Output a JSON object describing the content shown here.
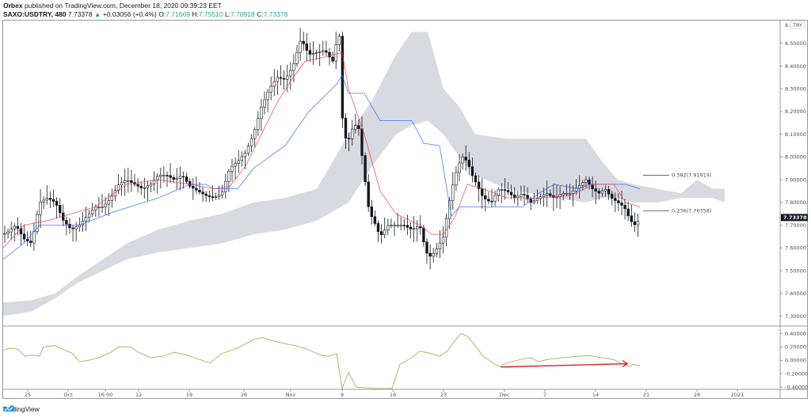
{
  "header": {
    "publisher": "Orbex",
    "published_text": "published on TradingView.com, December 18, 2020 09:39:23 EET",
    "symbol": "SAXO:USDTRY, 480",
    "last": "7.73378",
    "change_arrow": "▲",
    "change": "+0.03056 (+0.4%)",
    "o_label": "O:",
    "o": "7.71669",
    "h_label": "H:",
    "h": "7.75510",
    "l_label": "L:",
    "l": "7.70918",
    "c_label": "C:",
    "c": "7.73378"
  },
  "branding": {
    "name": "TradingView"
  },
  "price_axis": {
    "currency_badge": "TRY",
    "top_label_partial": "8.",
    "last_price_label": "7.73378",
    "ticks": [
      "8.50000",
      "8.40000",
      "8.30000",
      "8.20000",
      "8.10000",
      "8.00000",
      "7.90000",
      "7.80000",
      "7.70000",
      "7.60000",
      "7.50000",
      "7.40000",
      "7.30000"
    ]
  },
  "oscillator_axis": {
    "ticks": [
      "0.40000",
      "0.20000",
      "0.00000",
      "-0.20000",
      "-0.40000"
    ]
  },
  "time_axis": {
    "ticks": [
      "25",
      "Oct",
      "16:00",
      "12",
      "19",
      "26",
      "Nov",
      "9",
      "16",
      "23",
      "Dec",
      "7",
      "14",
      "21",
      "28",
      "2021"
    ]
  },
  "fib_levels": [
    {
      "label": "0.382(7.91919)",
      "value": 7.91919
    },
    {
      "label": "0.236(7.76358)",
      "value": 7.76358
    }
  ],
  "colors": {
    "tenkan": "#f23645",
    "kijun": "#2962ff",
    "cloud": "#d1d4dc",
    "candle": "#131722",
    "oscillator": "#b5b36a",
    "arrow": "#e01010",
    "axis": "#9598a1",
    "teal": "#26a69a",
    "brand": "#2196f3"
  },
  "chart_data": {
    "type": "candlestick",
    "title": "SAXO:USDTRY, 480",
    "indicators": [
      "Ichimoku Cloud (Tenkan, Kijun, Kumo)",
      "Fibonacci retracement",
      "Oscillator"
    ],
    "ylim": [
      7.26,
      8.6
    ],
    "osc_ylim": [
      -0.42,
      0.5
    ],
    "x_ticks": [
      "25",
      "Oct",
      "16:00",
      "12",
      "19",
      "26",
      "Nov",
      "9",
      "16",
      "23",
      "Dec",
      "7",
      "14",
      "21",
      "28",
      "2021"
    ],
    "y_ticks": [
      8.5,
      8.4,
      8.3,
      8.2,
      8.1,
      8.0,
      7.9,
      7.8,
      7.7,
      7.6,
      7.5,
      7.4,
      7.3
    ],
    "last_close": 7.73378,
    "close_path": [
      [
        4,
        7.66
      ],
      [
        10,
        7.67
      ],
      [
        20,
        7.7
      ],
      [
        30,
        7.64
      ],
      [
        40,
        7.62
      ],
      [
        50,
        7.8
      ],
      [
        60,
        7.82
      ],
      [
        70,
        7.8
      ],
      [
        80,
        7.72
      ],
      [
        90,
        7.68
      ],
      [
        100,
        7.7
      ],
      [
        110,
        7.74
      ],
      [
        120,
        7.78
      ],
      [
        130,
        7.78
      ],
      [
        140,
        7.82
      ],
      [
        150,
        7.88
      ],
      [
        160,
        7.9
      ],
      [
        170,
        7.88
      ],
      [
        180,
        7.86
      ],
      [
        190,
        7.88
      ],
      [
        200,
        7.92
      ],
      [
        210,
        7.92
      ],
      [
        220,
        7.9
      ],
      [
        230,
        7.92
      ],
      [
        240,
        7.87
      ],
      [
        250,
        7.85
      ],
      [
        260,
        7.83
      ],
      [
        270,
        7.82
      ],
      [
        280,
        7.84
      ],
      [
        290,
        7.95
      ],
      [
        300,
        7.98
      ],
      [
        310,
        8.02
      ],
      [
        320,
        8.1
      ],
      [
        330,
        8.22
      ],
      [
        340,
        8.3
      ],
      [
        350,
        8.35
      ],
      [
        360,
        8.34
      ],
      [
        370,
        8.4
      ],
      [
        380,
        8.52
      ],
      [
        390,
        8.45
      ],
      [
        400,
        8.46
      ],
      [
        410,
        8.47
      ],
      [
        420,
        8.42
      ],
      [
        428,
        8.56
      ],
      [
        432,
        8.18
      ],
      [
        438,
        8.05
      ],
      [
        444,
        8.12
      ],
      [
        452,
        8.15
      ],
      [
        460,
        7.92
      ],
      [
        466,
        7.76
      ],
      [
        472,
        7.72
      ],
      [
        480,
        7.65
      ],
      [
        490,
        7.7
      ],
      [
        500,
        7.7
      ],
      [
        510,
        7.7
      ],
      [
        520,
        7.68
      ],
      [
        530,
        7.7
      ],
      [
        538,
        7.58
      ],
      [
        544,
        7.56
      ],
      [
        552,
        7.6
      ],
      [
        560,
        7.65
      ],
      [
        566,
        7.78
      ],
      [
        572,
        7.88
      ],
      [
        578,
        7.96
      ],
      [
        584,
        8.0
      ],
      [
        590,
        7.98
      ],
      [
        596,
        7.92
      ],
      [
        602,
        7.88
      ],
      [
        610,
        7.82
      ],
      [
        620,
        7.8
      ],
      [
        630,
        7.86
      ],
      [
        640,
        7.85
      ],
      [
        650,
        7.82
      ],
      [
        660,
        7.84
      ],
      [
        670,
        7.8
      ],
      [
        680,
        7.82
      ],
      [
        690,
        7.84
      ],
      [
        700,
        7.82
      ],
      [
        710,
        7.84
      ],
      [
        720,
        7.84
      ],
      [
        730,
        7.87
      ],
      [
        740,
        7.9
      ],
      [
        748,
        7.86
      ],
      [
        756,
        7.84
      ],
      [
        764,
        7.86
      ],
      [
        772,
        7.82
      ],
      [
        780,
        7.8
      ],
      [
        788,
        7.78
      ],
      [
        796,
        7.72
      ],
      [
        802,
        7.7
      ],
      [
        808,
        7.73
      ]
    ],
    "tenkan": [
      [
        4,
        7.6
      ],
      [
        30,
        7.7
      ],
      [
        60,
        7.72
      ],
      [
        120,
        7.78
      ],
      [
        160,
        7.88
      ],
      [
        200,
        7.9
      ],
      [
        240,
        7.88
      ],
      [
        270,
        7.86
      ],
      [
        290,
        7.87
      ],
      [
        310,
        7.96
      ],
      [
        330,
        8.1
      ],
      [
        350,
        8.24
      ],
      [
        370,
        8.35
      ],
      [
        385,
        8.42
      ],
      [
        410,
        8.44
      ],
      [
        432,
        8.46
      ],
      [
        440,
        8.3
      ],
      [
        460,
        8.1
      ],
      [
        480,
        7.85
      ],
      [
        500,
        7.75
      ],
      [
        530,
        7.7
      ],
      [
        545,
        7.66
      ],
      [
        560,
        7.66
      ],
      [
        575,
        7.74
      ],
      [
        590,
        7.88
      ],
      [
        610,
        7.86
      ],
      [
        640,
        7.82
      ],
      [
        680,
        7.82
      ],
      [
        720,
        7.83
      ],
      [
        750,
        7.88
      ],
      [
        775,
        7.88
      ],
      [
        790,
        7.8
      ],
      [
        808,
        7.78
      ]
    ],
    "kijun": [
      [
        4,
        7.55
      ],
      [
        30,
        7.62
      ],
      [
        50,
        7.7
      ],
      [
        100,
        7.7
      ],
      [
        145,
        7.76
      ],
      [
        200,
        7.82
      ],
      [
        240,
        7.88
      ],
      [
        260,
        7.88
      ],
      [
        270,
        7.86
      ],
      [
        300,
        7.86
      ],
      [
        320,
        7.95
      ],
      [
        340,
        8.0
      ],
      [
        360,
        8.05
      ],
      [
        390,
        8.2
      ],
      [
        425,
        8.32
      ],
      [
        432,
        8.36
      ],
      [
        440,
        8.28
      ],
      [
        460,
        8.28
      ],
      [
        480,
        8.16
      ],
      [
        520,
        8.16
      ],
      [
        535,
        8.06
      ],
      [
        555,
        8.05
      ],
      [
        570,
        7.74
      ],
      [
        580,
        7.78
      ],
      [
        660,
        7.78
      ],
      [
        680,
        7.84
      ],
      [
        700,
        7.88
      ],
      [
        730,
        7.86
      ],
      [
        745,
        7.88
      ],
      [
        790,
        7.88
      ],
      [
        808,
        7.86
      ]
    ],
    "cloud_upper": [
      [
        4,
        7.36
      ],
      [
        40,
        7.37
      ],
      [
        70,
        7.4
      ],
      [
        100,
        7.48
      ],
      [
        130,
        7.55
      ],
      [
        160,
        7.62
      ],
      [
        200,
        7.68
      ],
      [
        240,
        7.72
      ],
      [
        280,
        7.75
      ],
      [
        320,
        7.8
      ],
      [
        360,
        7.82
      ],
      [
        400,
        7.86
      ],
      [
        440,
        8.1
      ],
      [
        470,
        8.25
      ],
      [
        500,
        8.45
      ],
      [
        520,
        8.55
      ],
      [
        540,
        8.55
      ],
      [
        560,
        8.3
      ],
      [
        580,
        8.22
      ],
      [
        600,
        8.1
      ],
      [
        640,
        8.08
      ],
      [
        700,
        8.08
      ],
      [
        740,
        8.08
      ],
      [
        760,
        7.98
      ],
      [
        780,
        7.9
      ],
      [
        800,
        7.88
      ],
      [
        830,
        7.86
      ],
      [
        860,
        7.84
      ],
      [
        880,
        7.9
      ],
      [
        900,
        7.86
      ],
      [
        915,
        7.86
      ]
    ],
    "cloud_lower": [
      [
        4,
        7.3
      ],
      [
        40,
        7.32
      ],
      [
        70,
        7.38
      ],
      [
        100,
        7.45
      ],
      [
        130,
        7.5
      ],
      [
        160,
        7.55
      ],
      [
        200,
        7.58
      ],
      [
        240,
        7.6
      ],
      [
        280,
        7.62
      ],
      [
        320,
        7.66
      ],
      [
        360,
        7.68
      ],
      [
        400,
        7.72
      ],
      [
        440,
        7.8
      ],
      [
        470,
        7.96
      ],
      [
        500,
        8.1
      ],
      [
        520,
        8.14
      ],
      [
        540,
        8.16
      ],
      [
        560,
        8.1
      ],
      [
        580,
        8.0
      ],
      [
        600,
        7.92
      ],
      [
        640,
        7.86
      ],
      [
        700,
        7.82
      ],
      [
        740,
        7.8
      ],
      [
        760,
        7.82
      ],
      [
        780,
        7.82
      ],
      [
        800,
        7.8
      ],
      [
        830,
        7.8
      ],
      [
        860,
        7.82
      ],
      [
        880,
        7.82
      ],
      [
        900,
        7.82
      ],
      [
        915,
        7.8
      ]
    ],
    "oscillator": [
      [
        4,
        0.15
      ],
      [
        12,
        0.18
      ],
      [
        22,
        0.17
      ],
      [
        32,
        0.06
      ],
      [
        40,
        0.08
      ],
      [
        50,
        0.06
      ],
      [
        55,
        0.2
      ],
      [
        70,
        0.22
      ],
      [
        80,
        0.16
      ],
      [
        92,
        0.1
      ],
      [
        100,
        -0.02
      ],
      [
        112,
        0.0
      ],
      [
        125,
        0.04
      ],
      [
        140,
        0.12
      ],
      [
        150,
        0.2
      ],
      [
        165,
        0.2
      ],
      [
        175,
        0.12
      ],
      [
        190,
        0.04
      ],
      [
        205,
        0.06
      ],
      [
        220,
        0.12
      ],
      [
        235,
        0.08
      ],
      [
        250,
        0.02
      ],
      [
        265,
        -0.04
      ],
      [
        280,
        0.1
      ],
      [
        300,
        0.18
      ],
      [
        312,
        0.26
      ],
      [
        322,
        0.32
      ],
      [
        332,
        0.34
      ],
      [
        342,
        0.3
      ],
      [
        355,
        0.26
      ],
      [
        372,
        0.22
      ],
      [
        385,
        0.18
      ],
      [
        396,
        0.12
      ],
      [
        405,
        0.08
      ],
      [
        415,
        0.06
      ],
      [
        425,
        0.1
      ],
      [
        432,
        -0.5
      ],
      [
        440,
        -0.18
      ],
      [
        450,
        -0.4
      ],
      [
        475,
        -0.46
      ],
      [
        495,
        -0.42
      ],
      [
        505,
        -0.06
      ],
      [
        520,
        0.04
      ],
      [
        530,
        0.14
      ],
      [
        545,
        0.1
      ],
      [
        555,
        0.06
      ],
      [
        565,
        0.14
      ],
      [
        572,
        0.26
      ],
      [
        582,
        0.4
      ],
      [
        590,
        0.36
      ],
      [
        600,
        0.22
      ],
      [
        610,
        0.06
      ],
      [
        625,
        -0.06
      ],
      [
        630,
        -0.09
      ],
      [
        640,
        -0.04
      ],
      [
        660,
        0.02
      ],
      [
        670,
        0.04
      ],
      [
        680,
        -0.02
      ],
      [
        690,
        0.01
      ],
      [
        710,
        0.04
      ],
      [
        730,
        0.06
      ],
      [
        745,
        0.07
      ],
      [
        760,
        0.04
      ],
      [
        775,
        0.01
      ],
      [
        785,
        -0.05
      ],
      [
        795,
        -0.09
      ],
      [
        800,
        -0.06
      ],
      [
        808,
        -0.08
      ]
    ],
    "annotation_arrow": {
      "from": [
        632,
        -0.1
      ],
      "to": [
        792,
        -0.05
      ],
      "color": "#e01010",
      "meaning": "bullish divergence"
    }
  }
}
